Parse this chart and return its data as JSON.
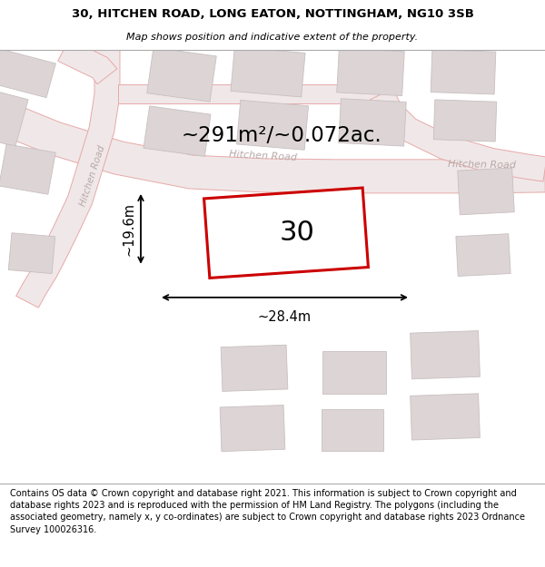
{
  "title_line1": "30, HITCHEN ROAD, LONG EATON, NOTTINGHAM, NG10 3SB",
  "title_line2": "Map shows position and indicative extent of the property.",
  "footer_text": "Contains OS data © Crown copyright and database right 2021. This information is subject to Crown copyright and database rights 2023 and is reproduced with the permission of HM Land Registry. The polygons (including the associated geometry, namely x, y co-ordinates) are subject to Crown copyright and database rights 2023 Ordnance Survey 100026316.",
  "area_label": "~291m²/~0.072ac.",
  "number_label": "30",
  "width_label": "~28.4m",
  "height_label": "~19.6m",
  "map_bg_color": "#f5efef",
  "building_color": "#ddd5d5",
  "building_edge": "#c8c0c0",
  "road_fill": "#f0e8e8",
  "road_edge": "#e8a8a8",
  "plot_edge": "#cc0000",
  "plot_fill": "#ffffff"
}
